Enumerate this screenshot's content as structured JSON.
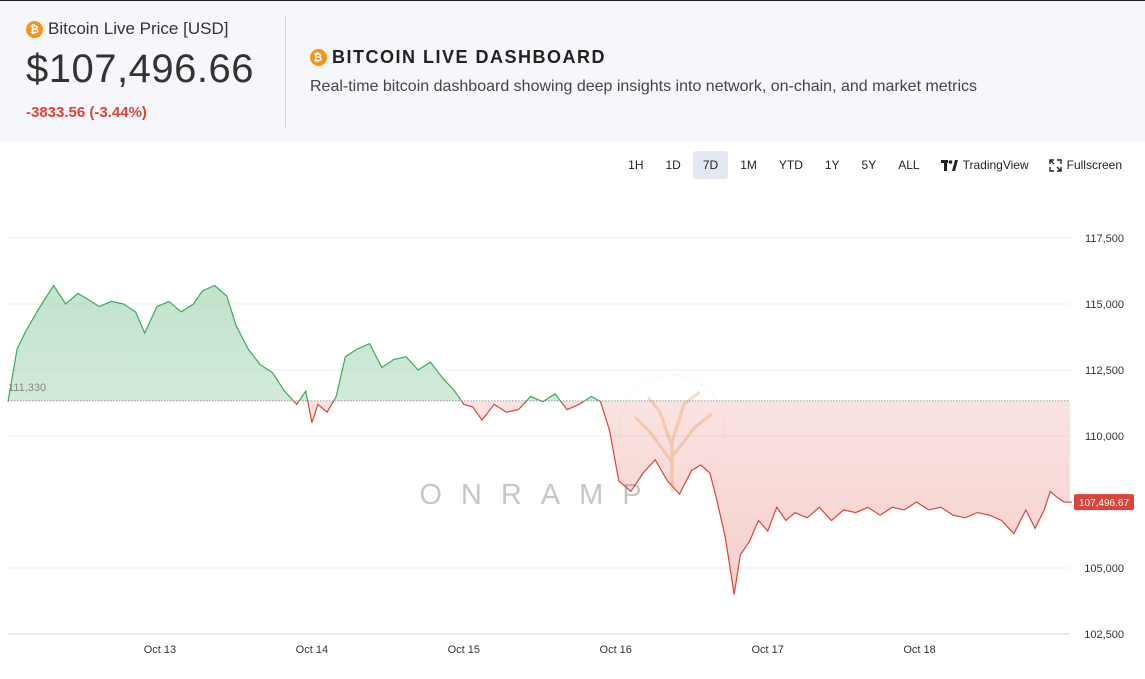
{
  "header": {
    "price_label": "Bitcoin Live Price [USD]",
    "price_value": "$107,496.66",
    "price_change": "-3833.56 (-3.44%)",
    "dashboard_title": "BITCOIN LIVE DASHBOARD",
    "dashboard_subtitle": "Real-time bitcoin dashboard showing deep insights into network, on-chain, and market metrics",
    "btc_glyph": "₿"
  },
  "toolbar": {
    "timeframes": [
      "1H",
      "1D",
      "7D",
      "1M",
      "YTD",
      "1Y",
      "5Y",
      "ALL"
    ],
    "active_timeframe": "7D",
    "tradingview_label": "TradingView",
    "fullscreen_label": "Fullscreen"
  },
  "watermark": "ONRAMP",
  "colors": {
    "up": "#3fa861",
    "down": "#d9453b",
    "btc": "#f7931a"
  },
  "chart_data": {
    "type": "area",
    "title": "",
    "baseline": 111330,
    "baseline_label": "111,330",
    "last_value": 107496.67,
    "last_label": "107,496.67",
    "ylim": [
      102500,
      117500
    ],
    "y_ticks": [
      117500,
      115000,
      112500,
      110000,
      105000,
      102500
    ],
    "y_tick_labels": [
      "117,500",
      "115,000",
      "112,500",
      "110,000",
      "105,000",
      "102,500"
    ],
    "x_range": [
      12.0,
      18.99
    ],
    "x_ticks": [
      13,
      14,
      15,
      16,
      17,
      18
    ],
    "x_tick_labels": [
      "Oct 13",
      "Oct 14",
      "Oct 15",
      "Oct 16",
      "Oct 17",
      "Oct 18"
    ],
    "x": [
      12.0,
      12.06,
      12.12,
      12.2,
      12.3,
      12.38,
      12.46,
      12.52,
      12.6,
      12.68,
      12.76,
      12.84,
      12.9,
      12.98,
      13.06,
      13.14,
      13.22,
      13.28,
      13.36,
      13.44,
      13.5,
      13.58,
      13.66,
      13.74,
      13.82,
      13.9,
      13.96,
      14.0,
      14.04,
      14.1,
      14.16,
      14.22,
      14.3,
      14.38,
      14.46,
      14.54,
      14.62,
      14.7,
      14.78,
      14.86,
      14.94,
      15.0,
      15.06,
      15.12,
      15.2,
      15.28,
      15.36,
      15.44,
      15.52,
      15.6,
      15.68,
      15.76,
      15.84,
      15.9,
      15.96,
      16.02,
      16.1,
      16.18,
      16.26,
      16.34,
      16.42,
      16.5,
      16.56,
      16.62,
      16.66,
      16.72,
      16.78,
      16.82,
      16.88,
      16.94,
      17.0,
      17.06,
      17.12,
      17.18,
      17.26,
      17.34,
      17.42,
      17.5,
      17.58,
      17.66,
      17.74,
      17.82,
      17.9,
      17.98,
      18.06,
      18.14,
      18.22,
      18.3,
      18.38,
      18.46,
      18.54,
      18.62,
      18.7,
      18.76,
      18.82,
      18.86,
      18.9,
      18.95,
      18.99
    ],
    "values": [
      111300,
      113300,
      114000,
      114800,
      115700,
      115000,
      115400,
      115200,
      114900,
      115100,
      115000,
      114700,
      113900,
      114900,
      115100,
      114700,
      115000,
      115500,
      115700,
      115300,
      114200,
      113300,
      112700,
      112400,
      111700,
      111200,
      111700,
      110500,
      111200,
      110900,
      111500,
      113000,
      113300,
      113500,
      112600,
      112900,
      113000,
      112500,
      112800,
      112200,
      111700,
      111200,
      111100,
      110600,
      111200,
      110900,
      111000,
      111500,
      111300,
      111600,
      111000,
      111200,
      111500,
      111300,
      110200,
      108300,
      107900,
      108600,
      109100,
      108300,
      107800,
      108700,
      108900,
      108600,
      107700,
      106200,
      104000,
      105500,
      106000,
      106800,
      106400,
      107300,
      106800,
      107100,
      106900,
      107300,
      106800,
      107200,
      107100,
      107300,
      107000,
      107300,
      107200,
      107500,
      107200,
      107300,
      107000,
      106900,
      107100,
      107000,
      106800,
      106300,
      107200,
      106500,
      107200,
      107900,
      107700,
      107500,
      107497
    ]
  }
}
